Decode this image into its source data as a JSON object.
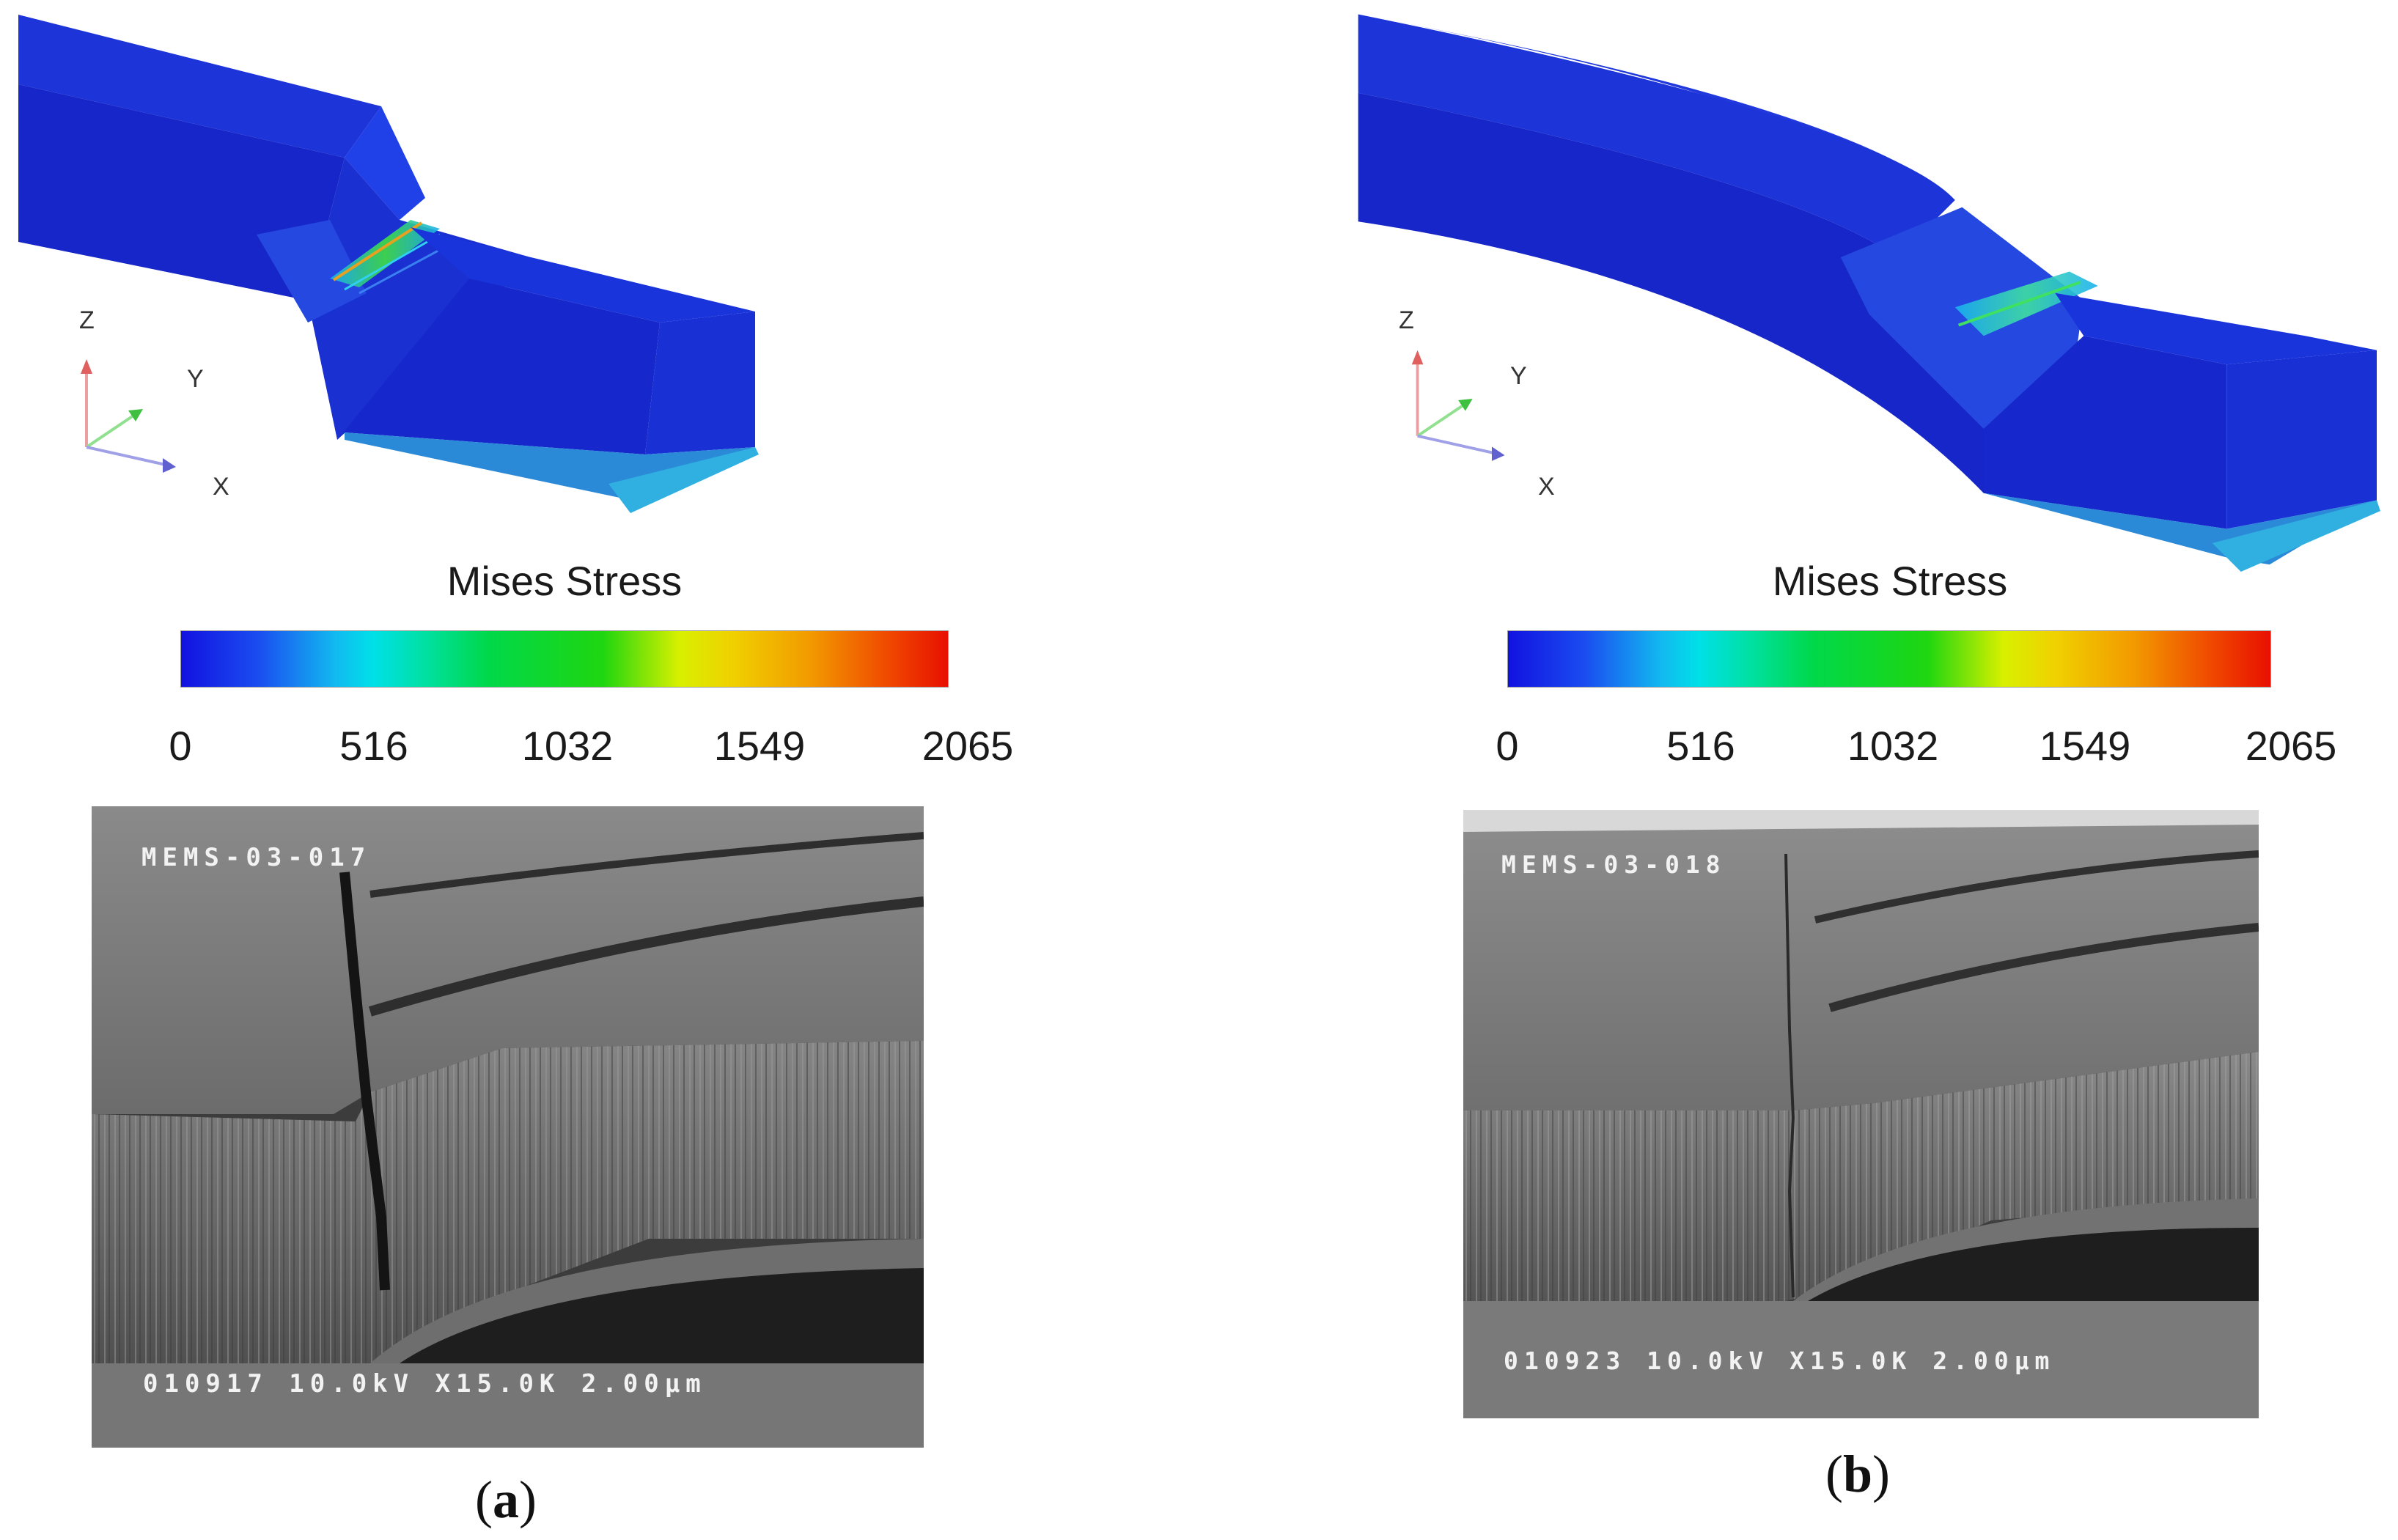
{
  "panels": [
    {
      "id": "a",
      "axes": {
        "z": "Z",
        "y": "Y",
        "x": "X"
      },
      "colorbar": {
        "title": "Mises Stress",
        "ticks": [
          "0",
          "516",
          "1032",
          "1549",
          "2065"
        ]
      },
      "sem": {
        "header": "MEMS-03-017",
        "footer": "010917 10.0kV X15.0K 2.00µm"
      },
      "caption_letter": "a"
    },
    {
      "id": "b",
      "axes": {
        "z": "Z",
        "y": "Y",
        "x": "X"
      },
      "colorbar": {
        "title": "Mises Stress",
        "ticks": [
          "0",
          "516",
          "1032",
          "1549",
          "2065"
        ]
      },
      "sem": {
        "header": "MEMS-03-018",
        "footer": "010923 10.0kV X15.0K 2.00µm"
      },
      "caption_letter": "b"
    }
  ]
}
